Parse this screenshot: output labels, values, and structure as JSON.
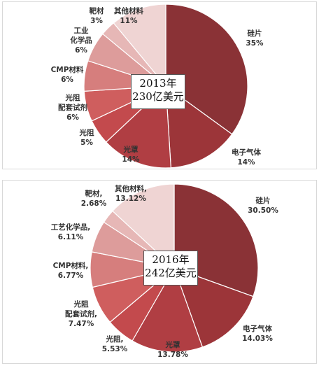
{
  "chart_data": [
    {
      "type": "pie",
      "center_label": [
        "2013年",
        "230亿美元"
      ],
      "slices": [
        {
          "label": "硅片",
          "display": "35%",
          "value": 35,
          "color": "#8a3236"
        },
        {
          "label": "电子气体",
          "display": "14%",
          "value": 14,
          "color": "#9c3539"
        },
        {
          "label": "光罩",
          "display": "14%",
          "value": 14,
          "color": "#b03e43"
        },
        {
          "label": "光阻",
          "display": "5%",
          "value": 5,
          "color": "#c34a4d"
        },
        {
          "label": "光阻配套试剂",
          "label_lines": [
            "光阻",
            "配套试剂"
          ],
          "display": "6%",
          "value": 6,
          "color": "#cf5e5e"
        },
        {
          "label": "CMP材料",
          "display": "6%",
          "value": 6,
          "color": "#d67e7d"
        },
        {
          "label": "工业化学品",
          "label_lines": [
            "工业",
            "化学品"
          ],
          "display": "6%",
          "value": 6,
          "color": "#dd9c9b"
        },
        {
          "label": "靶材",
          "display": "3%",
          "value": 3,
          "color": "#e6b7b6"
        },
        {
          "label": "其他材料",
          "display": "11%",
          "value": 11,
          "color": "#efd4d3"
        }
      ]
    },
    {
      "type": "pie",
      "center_label": [
        "2016年",
        "242亿美元"
      ],
      "slices": [
        {
          "label": "硅片",
          "display": "30.50%",
          "value": 30.5,
          "color": "#8a3236"
        },
        {
          "label": "电子气体",
          "display": "14.03%",
          "value": 14.03,
          "color": "#9c3539"
        },
        {
          "label": "光罩",
          "display": "13.78%",
          "value": 13.78,
          "color": "#b03e43"
        },
        {
          "label": "光阻",
          "label_lines": [
            "光阻,"
          ],
          "display": "5.53%",
          "value": 5.53,
          "color": "#c34a4d"
        },
        {
          "label": "光阻配套试剂",
          "label_lines": [
            "光阻",
            "配套试剂,"
          ],
          "display": "7.47%",
          "value": 7.47,
          "color": "#cf5e5e"
        },
        {
          "label": "CMP材料",
          "label_lines": [
            "CMP材料,"
          ],
          "display": "6.77%",
          "value": 6.77,
          "color": "#d67e7d"
        },
        {
          "label": "工艺化学品",
          "label_lines": [
            "工艺化学品,"
          ],
          "display": "6.11%",
          "value": 6.11,
          "color": "#dd9c9b"
        },
        {
          "label": "靶材",
          "label_lines": [
            "靶材,"
          ],
          "display": "2.68%",
          "value": 2.68,
          "color": "#e6b7b6"
        },
        {
          "label": "其他材料",
          "label_lines": [
            "其他材料,"
          ],
          "display": "13.12%",
          "value": 13.12,
          "color": "#efd4d3"
        }
      ]
    }
  ]
}
